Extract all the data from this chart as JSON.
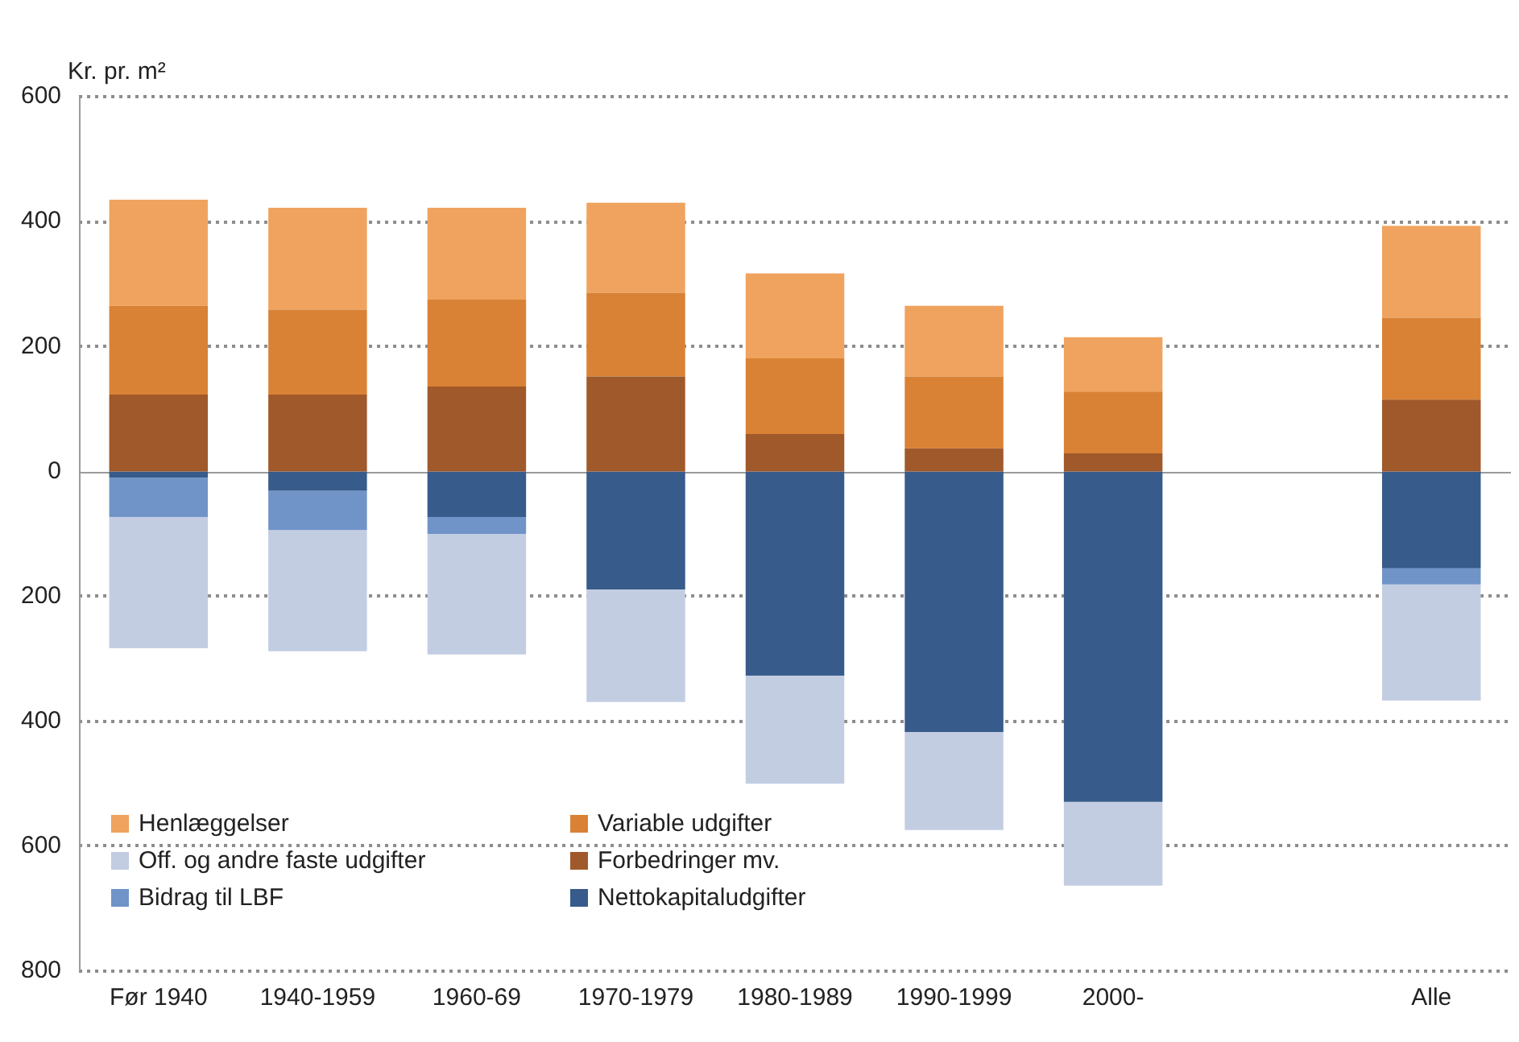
{
  "chart_data": {
    "type": "bar",
    "stacked": true,
    "ylabel": "Kr. pr. m²",
    "categories": [
      "Før 1940",
      "1940-1959",
      "1960-69",
      "1970-1979",
      "1980-1989",
      "1990-1999",
      "2000-",
      null,
      "Alle"
    ],
    "series": [
      {
        "name": "Forbedringer mv.",
        "color": "#a0592a",
        "values": [
          123,
          123,
          136,
          152,
          60,
          37,
          29,
          null,
          115
        ]
      },
      {
        "name": "Variable udgifter",
        "color": "#d98235",
        "values": [
          142,
          136,
          139,
          134,
          121,
          115,
          99,
          null,
          131
        ]
      },
      {
        "name": "Henlæggelser",
        "color": "#f0a35e",
        "values": [
          170,
          163,
          147,
          144,
          136,
          113,
          87,
          null,
          147
        ]
      },
      {
        "name": "Nettokapitaludgifter",
        "color": "#375b8a",
        "values": [
          -10,
          -31,
          -73,
          -189,
          -327,
          -417,
          -529,
          null,
          -155
        ]
      },
      {
        "name": "Bidrag til LBF",
        "color": "#7094c8",
        "values": [
          -63,
          -63,
          -27,
          0,
          0,
          0,
          0,
          null,
          -26
        ]
      },
      {
        "name": "Off. og andre faste udgifter",
        "color": "#c3cde2",
        "values": [
          -210,
          -194,
          -193,
          -180,
          -173,
          -157,
          -134,
          null,
          -186
        ]
      }
    ],
    "ylim": [
      -800,
      600
    ],
    "yticks": [
      {
        "value": -800,
        "label": "800"
      },
      {
        "value": -600,
        "label": "600"
      },
      {
        "value": -400,
        "label": "400"
      },
      {
        "value": -200,
        "label": "200"
      },
      0,
      200,
      400,
      600
    ],
    "grid": "y",
    "legend": "bottom left"
  }
}
